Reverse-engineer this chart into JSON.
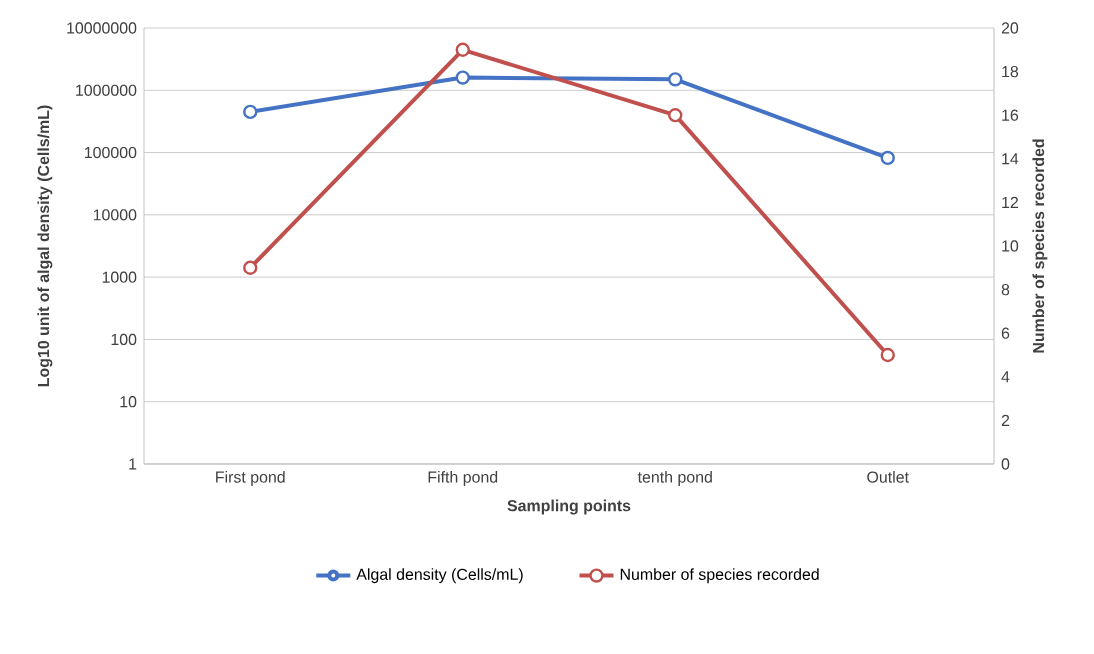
{
  "chart_data": {
    "type": "line",
    "xlabel": "Sampling points",
    "ylabel": "Log10 unit of algal density (Cells/mL)",
    "y2label": "Number of species recorded",
    "categories": [
      "First pond",
      "Fifth pond",
      "tenth pond",
      "Outlet"
    ],
    "series": [
      {
        "name": "Algal density (Cells/mL)",
        "color": "#4472c4",
        "values": [
          450000,
          1600000,
          1500000,
          82000
        ]
      },
      {
        "name": "Number of species recorded",
        "color": "#c0504d",
        "values": [
          9,
          19,
          16,
          5
        ],
        "axis": "y2"
      }
    ],
    "log": "y",
    "ylim": [
      1,
      10000000
    ],
    "yticks": [
      1,
      10,
      100,
      1000,
      10000,
      100000,
      1000000,
      10000000
    ],
    "y2lim": [
      0,
      20
    ],
    "y2ticks": [
      0,
      2,
      4,
      6,
      8,
      10,
      12,
      14,
      16,
      18,
      20
    ],
    "grid": "y",
    "legend": "bottom",
    "marker": "circle",
    "line_style": "solid"
  }
}
